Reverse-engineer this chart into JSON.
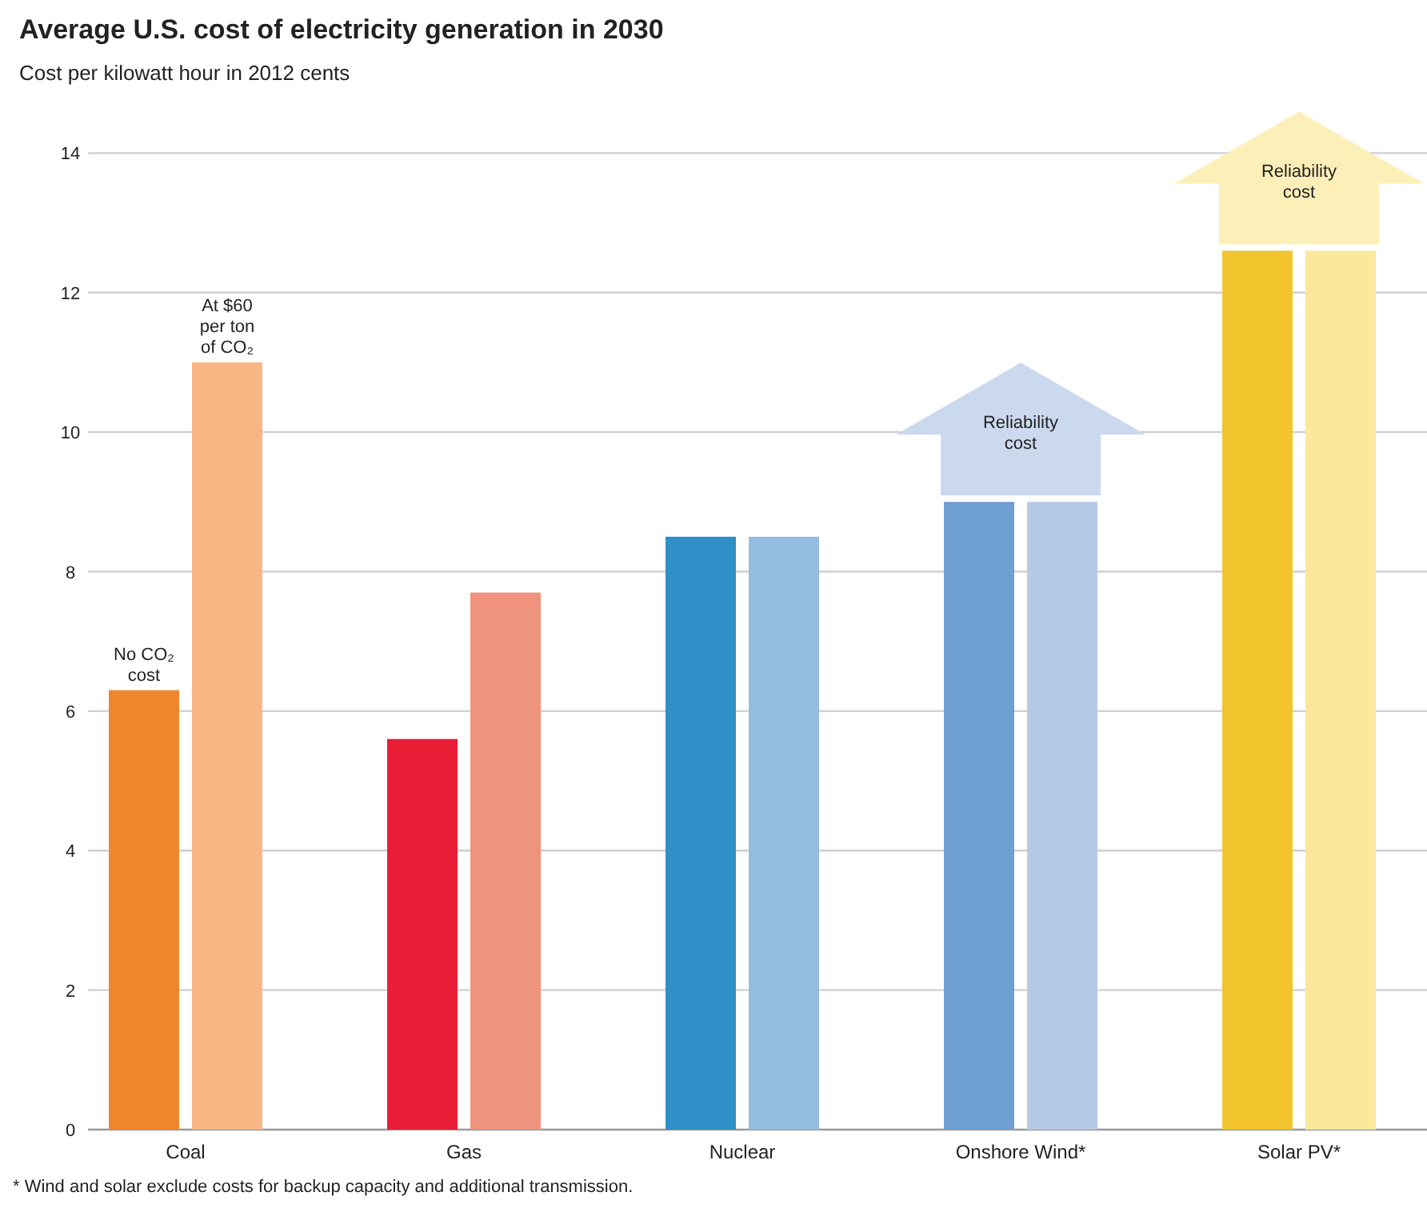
{
  "chart_data": {
    "type": "bar",
    "title": "Average U.S. cost of electricity generation in 2030",
    "subtitle": "Cost per kilowatt hour in 2012 cents",
    "categories": [
      "Coal",
      "Gas",
      "Nuclear",
      "Onshore Wind*",
      "Solar PV*"
    ],
    "series": [
      {
        "colors": [
          "#f0852d",
          "#e81e36",
          "#2e90c6",
          "#6f9fd0",
          "#f2c52f"
        ],
        "values": [
          6.3,
          5.6,
          8.5,
          9.0,
          12.6
        ]
      },
      {
        "colors": [
          "#f7b684",
          "#f0937e",
          "#93bddf",
          "#b4c9e6",
          "#fce89a"
        ],
        "values": [
          11.0,
          7.7,
          8.5,
          9.0,
          12.6
        ]
      }
    ],
    "ylim": [
      0,
      14
    ],
    "yticks": [
      0,
      2,
      4,
      6,
      8,
      10,
      12,
      14
    ],
    "grid": "y",
    "annotations": [
      {
        "text": "No CO₂ cost",
        "x": "Coal",
        "y": 6.3
      },
      {
        "text": "At $60 per ton of CO₂",
        "x": "Coal",
        "y": 11.0
      },
      {
        "text": "Reliability cost",
        "x": "Onshore Wind*",
        "y": 9.0
      },
      {
        "text": "Reliability cost",
        "x": "Solar PV*",
        "y": 12.6
      },
      "* Wind and solar exclude costs for backup capacity and additional transmission."
    ]
  }
}
